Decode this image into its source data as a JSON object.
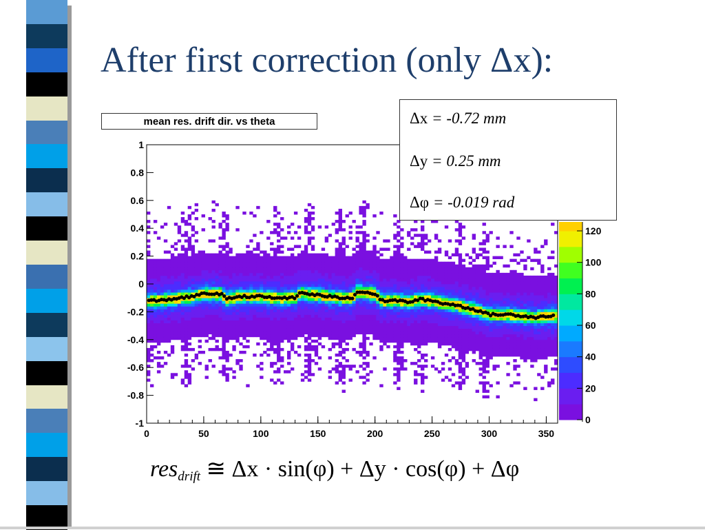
{
  "slide": {
    "title": "After first correction (only Δx):",
    "strip_colors": [
      "#5a9bd4",
      "#0d3a5c",
      "#1e64c8",
      "#000000",
      "#e6e6c4",
      "#4a7fb8",
      "#00a0e8",
      "#0b2e4e",
      "#86bde8",
      "#000000",
      "#e6e6c4",
      "#3a70b0",
      "#00a0e8",
      "#0d3a5c",
      "#8cc4ec",
      "#000000",
      "#e6e6c4",
      "#4a7fb8",
      "#00a0e8",
      "#0b2e4e",
      "#86bde8",
      "#000000"
    ]
  },
  "parameters": [
    {
      "symbol": "Δx",
      "value": " = -0.72 mm"
    },
    {
      "symbol": "Δy",
      "value": " = 0.25 mm"
    },
    {
      "symbol": "Δφ",
      "value": " = -0.019 rad"
    }
  ],
  "formula": {
    "lhs": "res",
    "lhs_sub": "drift",
    "rhs": " ≅ Δx · sin(φ) + Δy · cos(φ) + Δφ"
  },
  "chart_data": {
    "type": "heatmap",
    "title": "mean res. drift dir. vs theta",
    "xlabel": "",
    "ylabel": "",
    "xlim": [
      0,
      360
    ],
    "ylim": [
      -1,
      1
    ],
    "x_ticks": [
      0,
      50,
      100,
      150,
      200,
      250,
      300,
      350
    ],
    "y_ticks": [
      1,
      0.8,
      0.6,
      0.4,
      0.2,
      0,
      -0.2,
      -0.4,
      -0.6,
      -0.8,
      -1
    ],
    "colorbar": {
      "range": [
        0,
        130
      ],
      "ticks": [
        0,
        20,
        40,
        60,
        80,
        100,
        120
      ],
      "colors": [
        "#7a10e0",
        "#6a1ef0",
        "#4c2cff",
        "#2e4cff",
        "#1a7aff",
        "#00aaff",
        "#00d8e8",
        "#00e8a0",
        "#00f050",
        "#40ff20",
        "#a0ff00",
        "#f0f000",
        "#ffd000"
      ]
    },
    "mean_profile": {
      "x": [
        0,
        10,
        20,
        30,
        40,
        50,
        60,
        65,
        70,
        80,
        90,
        100,
        110,
        120,
        130,
        135,
        140,
        150,
        160,
        170,
        180,
        185,
        190,
        200,
        205,
        210,
        220,
        230,
        240,
        250,
        260,
        270,
        280,
        290,
        300,
        310,
        320,
        330,
        340,
        350,
        360
      ],
      "y": [
        -0.12,
        -0.12,
        -0.11,
        -0.1,
        -0.09,
        -0.07,
        -0.07,
        -0.07,
        -0.11,
        -0.09,
        -0.09,
        -0.09,
        -0.1,
        -0.1,
        -0.1,
        -0.06,
        -0.07,
        -0.08,
        -0.09,
        -0.1,
        -0.1,
        -0.05,
        -0.06,
        -0.07,
        -0.12,
        -0.12,
        -0.12,
        -0.13,
        -0.11,
        -0.12,
        -0.14,
        -0.15,
        -0.17,
        -0.19,
        -0.22,
        -0.22,
        -0.22,
        -0.23,
        -0.24,
        -0.23,
        -0.23
      ]
    }
  }
}
